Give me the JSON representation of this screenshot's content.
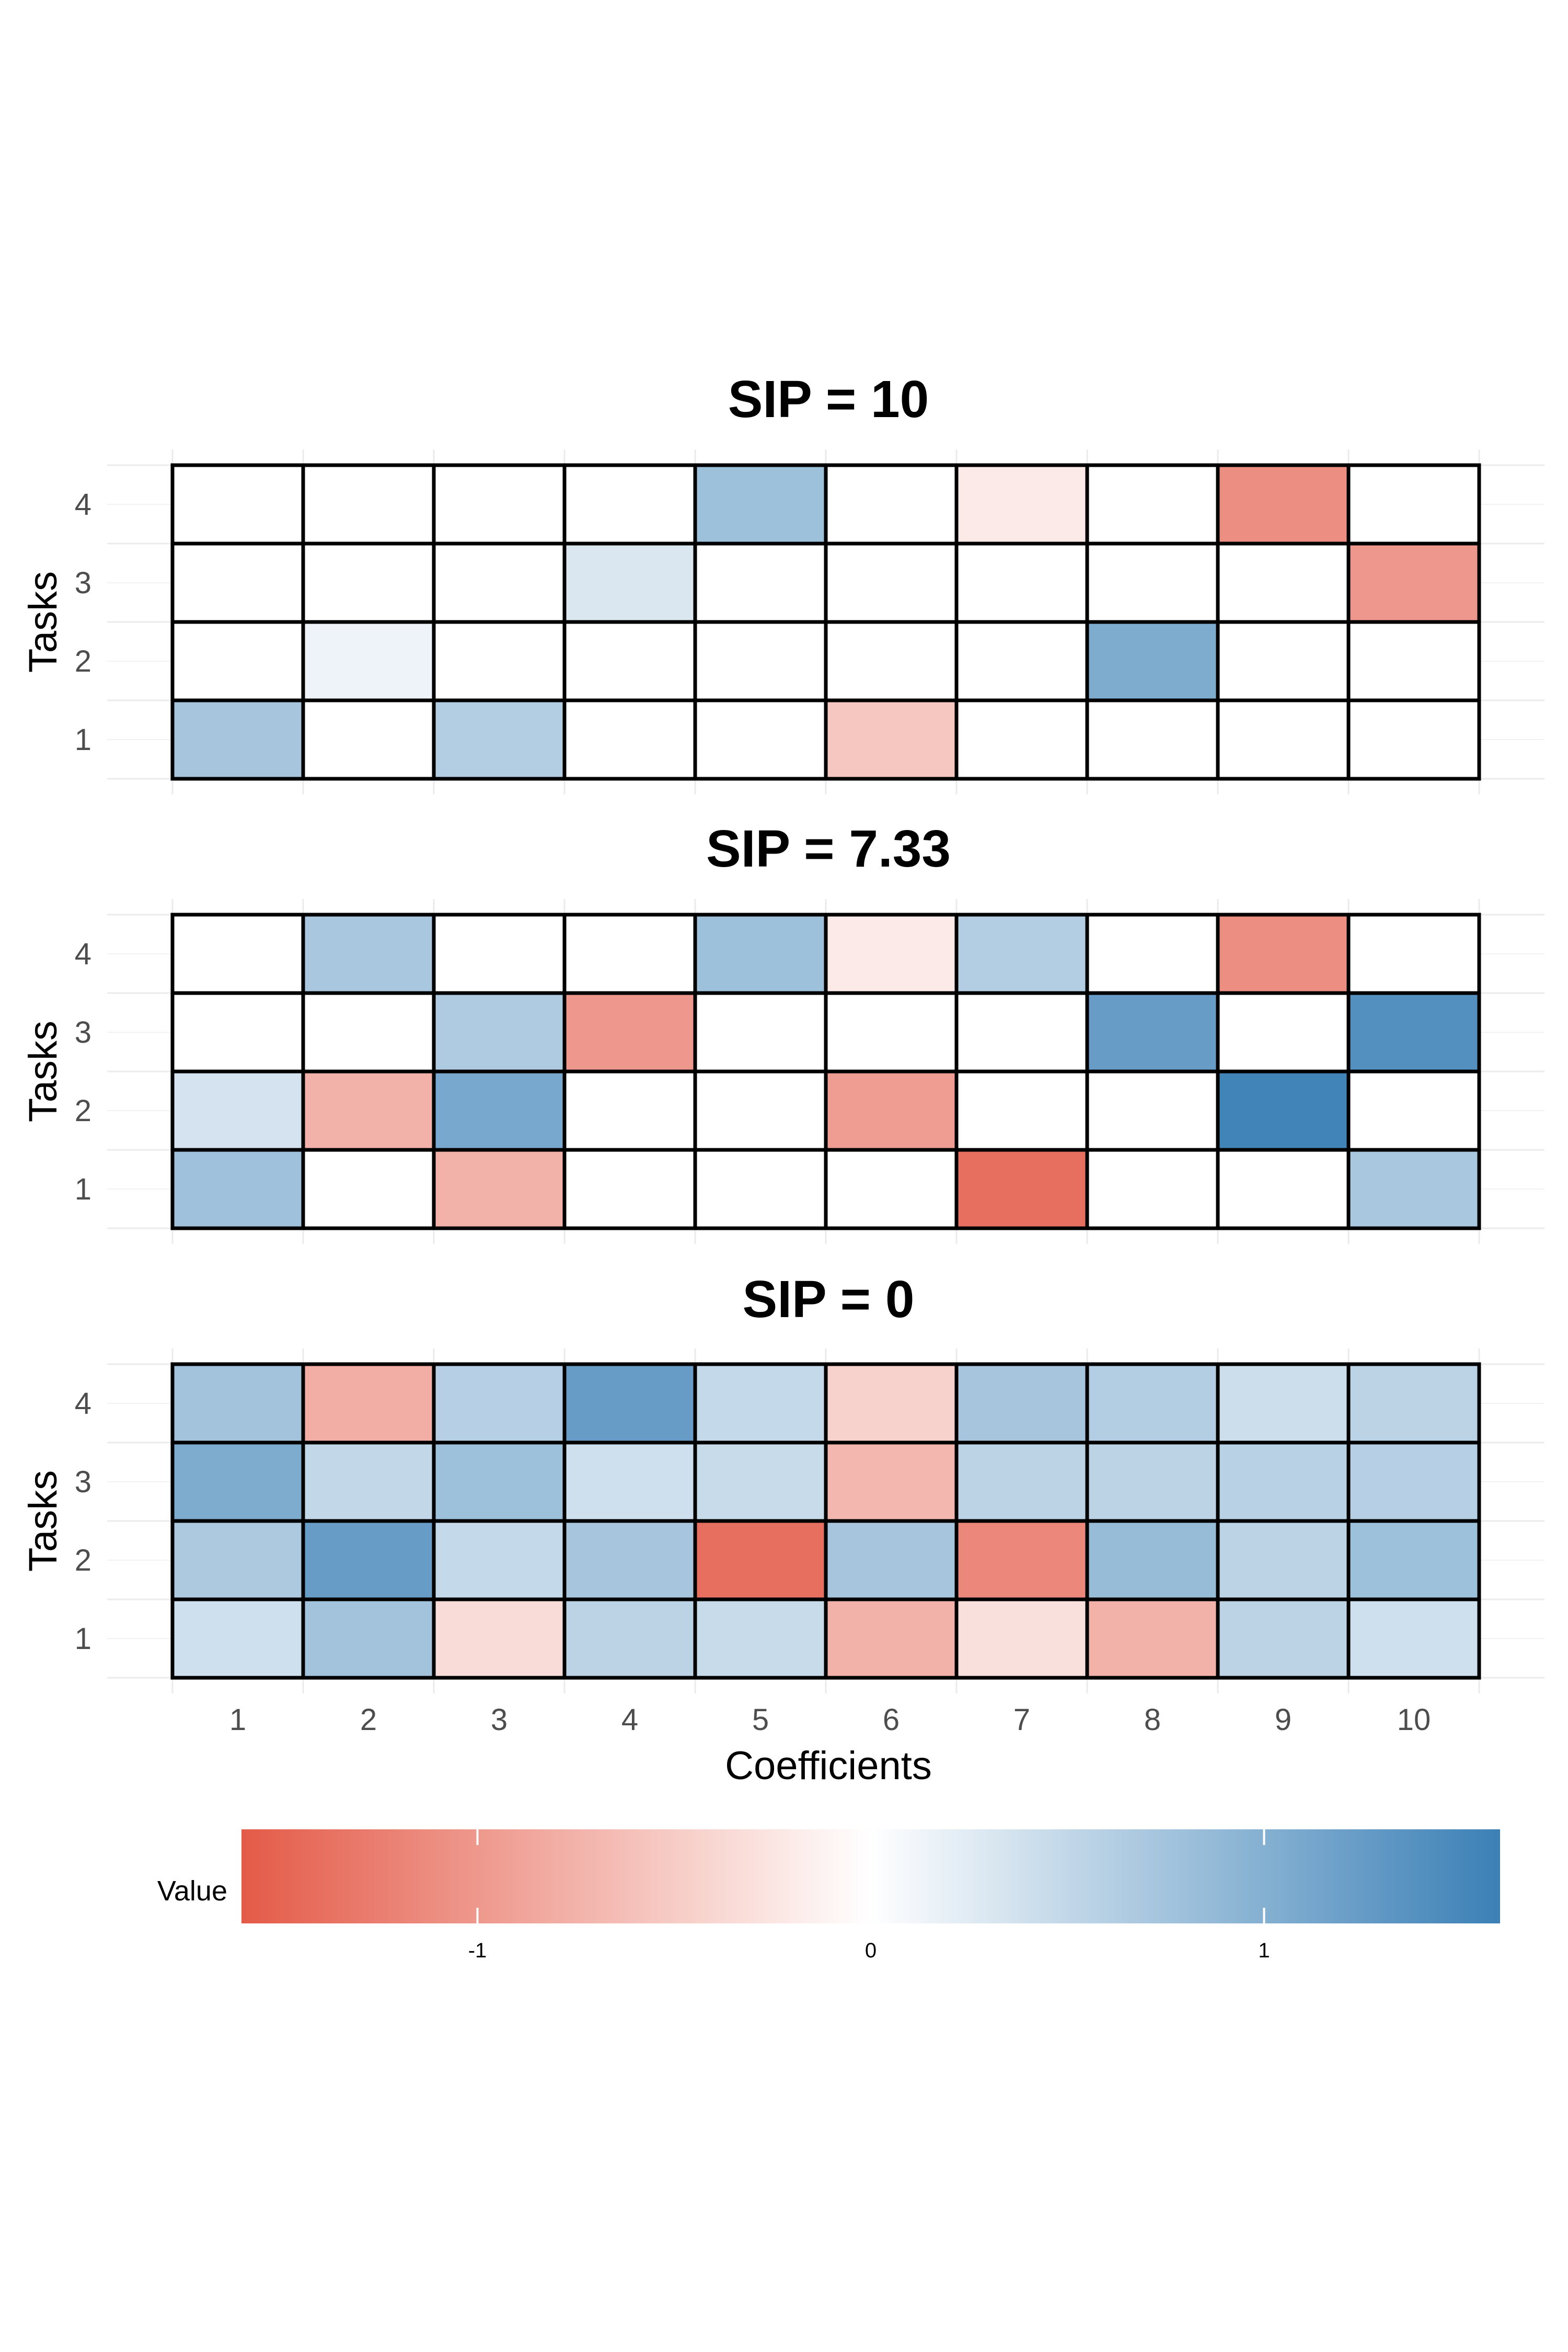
{
  "chart_data": [
    {
      "type": "heatmap",
      "title": "SIP = 10",
      "xlabel": "",
      "ylabel": "Tasks",
      "x_categories": [
        "1",
        "2",
        "3",
        "4",
        "5",
        "6",
        "7",
        "8",
        "9",
        "10"
      ],
      "y_categories": [
        "1",
        "2",
        "3",
        "4"
      ],
      "values": [
        [
          0.72,
          0,
          0.62,
          0,
          0,
          -0.55,
          0,
          0,
          0,
          0
        ],
        [
          0,
          0.15,
          0,
          0,
          0,
          0,
          0,
          1.05,
          0,
          0
        ],
        [
          0,
          0,
          0,
          0.3,
          0,
          0,
          0,
          0,
          0,
          -1.0
        ],
        [
          0,
          0,
          0,
          0,
          0.8,
          0,
          -0.2,
          0,
          -1.1,
          0
        ]
      ]
    },
    {
      "type": "heatmap",
      "title": "SIP = 7.33",
      "xlabel": "",
      "ylabel": "Tasks",
      "x_categories": [
        "1",
        "2",
        "3",
        "4",
        "5",
        "6",
        "7",
        "8",
        "9",
        "10"
      ],
      "y_categories": [
        "1",
        "2",
        "3",
        "4"
      ],
      "values": [
        [
          0.78,
          0,
          -0.75,
          0,
          0,
          0,
          -1.4,
          0,
          0,
          0.7
        ],
        [
          0.35,
          -0.75,
          1.1,
          0,
          0,
          -0.95,
          0,
          0,
          1.55,
          0
        ],
        [
          0,
          0,
          0.65,
          -1.0,
          0,
          0,
          0,
          1.25,
          0,
          1.4
        ],
        [
          0,
          0.7,
          0,
          0,
          0.8,
          -0.2,
          0.62,
          0,
          -1.1,
          0
        ]
      ]
    },
    {
      "type": "heatmap",
      "title": "SIP = 0",
      "xlabel": "Coefficients",
      "ylabel": "Tasks",
      "x_categories": [
        "1",
        "2",
        "3",
        "4",
        "5",
        "6",
        "7",
        "8",
        "9",
        "10"
      ],
      "y_categories": [
        "1",
        "2",
        "3",
        "4"
      ],
      "values": [
        [
          0.4,
          0.75,
          -0.35,
          0.55,
          0.45,
          -0.75,
          -0.3,
          -0.75,
          0.55,
          0.4
        ],
        [
          0.68,
          1.25,
          0.48,
          0.72,
          -1.4,
          0.72,
          -1.15,
          0.85,
          0.55,
          0.8
        ],
        [
          1.05,
          0.5,
          0.8,
          0.4,
          0.45,
          -0.7,
          0.55,
          0.55,
          0.58,
          0.6
        ],
        [
          0.75,
          -0.8,
          0.6,
          1.25,
          0.48,
          -0.45,
          0.72,
          0.62,
          0.42,
          0.55
        ]
      ]
    }
  ],
  "legend": {
    "title": "Value",
    "min": -1.6,
    "max": 1.6,
    "ticks": [
      {
        "value": -1,
        "label": "-1"
      },
      {
        "value": 0,
        "label": "0"
      },
      {
        "value": 1,
        "label": "1"
      }
    ]
  },
  "colors": {
    "low": "#e45a48",
    "mid": "#ffffff",
    "high": "#3b80b6"
  }
}
